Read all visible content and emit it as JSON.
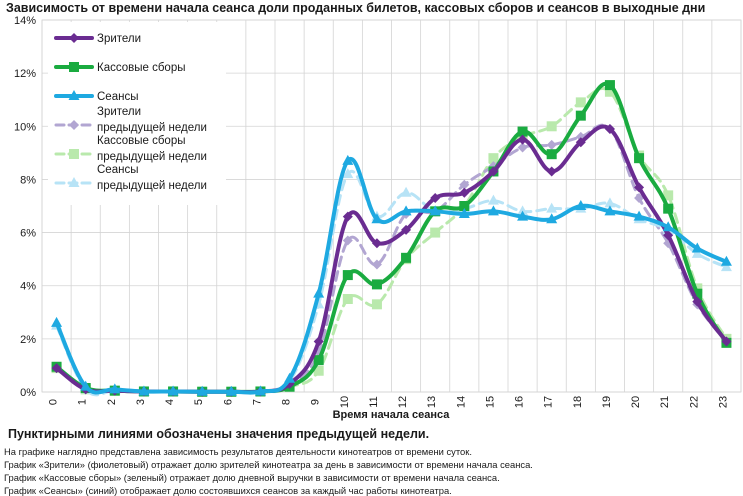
{
  "chart_data": {
    "type": "line",
    "title": "Зависимость от времени начала сеанса доли проданных билетов, кассовых сборов и сеансов в выходные дни",
    "xlabel": "Время начала сеанса",
    "ylabel": "",
    "categories": [
      "0",
      "1",
      "2",
      "3",
      "4",
      "5",
      "6",
      "7",
      "8",
      "9",
      "10",
      "11",
      "12",
      "13",
      "14",
      "15",
      "16",
      "17",
      "18",
      "19",
      "20",
      "21",
      "22",
      "23"
    ],
    "y_ticks": [
      "0%",
      "2%",
      "4%",
      "6%",
      "8%",
      "10%",
      "12%",
      "14%"
    ],
    "ylim": [
      0,
      14
    ],
    "grid": true,
    "legend_position": "top-left",
    "series": [
      {
        "name": "Зрители",
        "color": "#6a2c91",
        "dashed": false,
        "marker": "diamond",
        "values": [
          0.9,
          0.1,
          0.05,
          0.02,
          0.02,
          0.01,
          0.01,
          0.02,
          0.3,
          1.9,
          6.6,
          5.6,
          6.1,
          7.3,
          7.5,
          8.3,
          9.5,
          8.3,
          9.4,
          9.9,
          7.7,
          5.9,
          3.4,
          1.9
        ]
      },
      {
        "name": "Кассовые сборы",
        "color": "#1aab40",
        "dashed": false,
        "marker": "square",
        "values": [
          0.95,
          0.15,
          0.05,
          0.02,
          0.02,
          0.01,
          0.01,
          0.02,
          0.2,
          1.2,
          4.4,
          4.05,
          5.05,
          6.8,
          7.0,
          8.3,
          9.8,
          8.95,
          10.4,
          11.55,
          8.8,
          6.9,
          3.7,
          1.85
        ]
      },
      {
        "name": "Сеансы",
        "color": "#1ea9e1",
        "dashed": false,
        "marker": "triangle",
        "values": [
          2.6,
          0.2,
          0.1,
          0.02,
          0.02,
          0.01,
          0.01,
          0.02,
          0.5,
          3.7,
          8.7,
          6.5,
          6.8,
          6.8,
          6.7,
          6.8,
          6.6,
          6.5,
          7.0,
          6.8,
          6.6,
          6.2,
          5.4,
          4.9
        ]
      },
      {
        "name": "Зрители предыдущей недели",
        "color": "#b2a6d2",
        "dashed": true,
        "marker": "diamond",
        "values": [
          0.9,
          0.1,
          0.05,
          0.02,
          0.02,
          0.01,
          0.01,
          0.02,
          0.3,
          1.5,
          5.7,
          4.8,
          6.7,
          6.8,
          7.8,
          8.5,
          9.2,
          9.3,
          9.6,
          9.9,
          7.3,
          5.6,
          3.3,
          1.9
        ]
      },
      {
        "name": "Кассовые сборы предыдущей недели",
        "color": "#b9e9ac",
        "dashed": true,
        "marker": "square",
        "values": [
          0.9,
          0.1,
          0.05,
          0.02,
          0.02,
          0.01,
          0.01,
          0.02,
          0.2,
          0.8,
          3.5,
          3.3,
          5.0,
          6.0,
          7.0,
          8.8,
          9.6,
          10.0,
          10.9,
          11.3,
          8.9,
          7.4,
          3.9,
          2.0
        ]
      },
      {
        "name": "Сеансы предыдущей недели",
        "color": "#b7e3f6",
        "dashed": true,
        "marker": "triangle",
        "values": [
          2.5,
          0.1,
          0.05,
          0.02,
          0.02,
          0.01,
          0.01,
          0.02,
          0.4,
          3.3,
          8.2,
          6.6,
          7.5,
          6.8,
          6.9,
          7.2,
          6.8,
          6.9,
          6.9,
          7.1,
          6.5,
          6.1,
          5.2,
          4.7
        ]
      }
    ],
    "legend": [
      {
        "line1": "Зрители",
        "line2": ""
      },
      {
        "line1": "Кассовые сборы",
        "line2": ""
      },
      {
        "line1": "Сеансы",
        "line2": ""
      },
      {
        "line1": "Зрители",
        "line2": "предыдущей недели"
      },
      {
        "line1": "Кассовые сборы",
        "line2": "предыдущей недели"
      },
      {
        "line1": "Сеансы",
        "line2": "предыдущей недели"
      }
    ]
  },
  "notes": {
    "bold": "Пунктирными линиями обозначены значения предыдущей недели.",
    "lines": [
      "На графике наглядно представлена зависимость результатов деятельности кинотеатров от времени суток.",
      "График «Зрители» (фиолетовый) отражает долю зрителей кинотеатра за день в зависимости от времени начала сеанса.",
      "График «Кассовые сборы» (зеленый) отражает долю дневной выручки в зависимости от времени начала сеанса.",
      "График «Сеансы» (синий) отображает долю состоявшихся сеансов за каждый час работы кинотеатра."
    ]
  }
}
